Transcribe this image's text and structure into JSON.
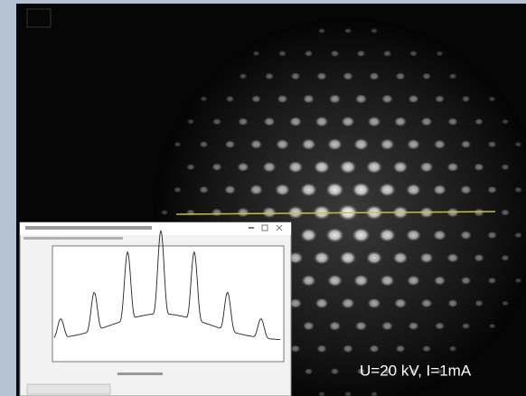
{
  "annotation": "U=20 kV, I=1mA"
}
